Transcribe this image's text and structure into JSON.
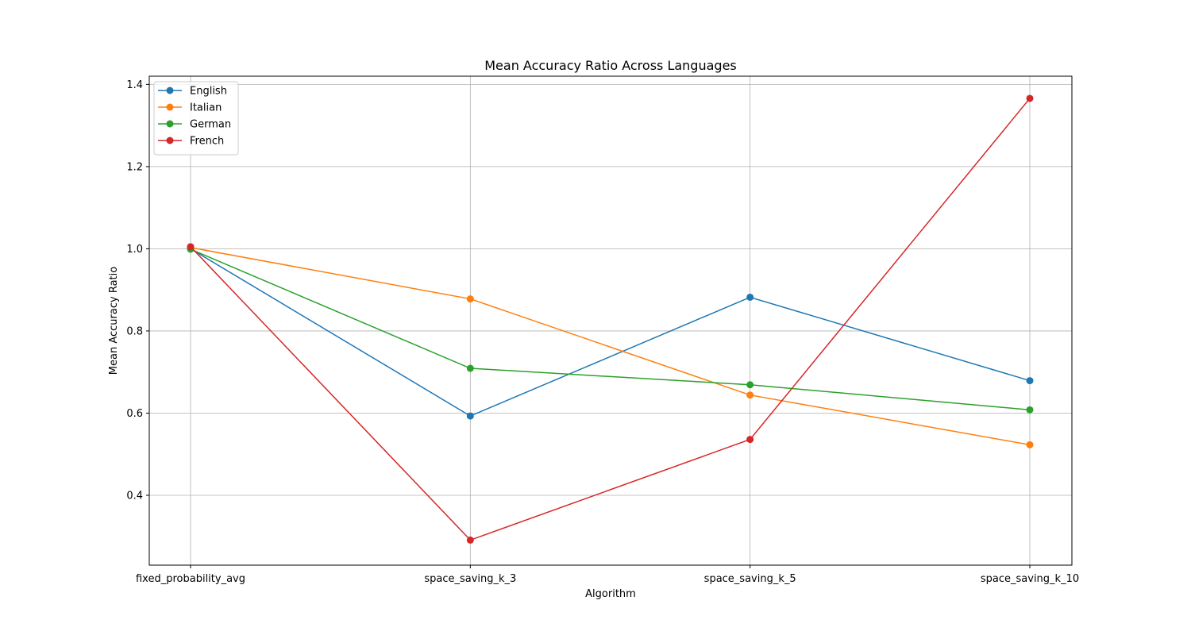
{
  "chart_data": {
    "type": "line",
    "title": "Mean Accuracy Ratio Across Languages",
    "xlabel": "Algorithm",
    "ylabel": "Mean Accuracy Ratio",
    "categories": [
      "fixed_probability_avg",
      "space_saving_k_3",
      "space_saving_k_5",
      "space_saving_k_10"
    ],
    "ylim": [
      0.23,
      1.42
    ],
    "yticks": [
      0.4,
      0.6,
      0.8,
      1.0,
      1.2,
      1.4
    ],
    "ytick_labels": [
      "0.4",
      "0.6",
      "0.8",
      "1.0",
      "1.2",
      "1.4"
    ],
    "grid": true,
    "legend_position": "top-left",
    "series": [
      {
        "name": "English",
        "color": "#1f77b4",
        "values": [
          1.0,
          0.593,
          0.882,
          0.679
        ]
      },
      {
        "name": "Italian",
        "color": "#ff7f0e",
        "values": [
          1.003,
          0.878,
          0.644,
          0.523
        ]
      },
      {
        "name": "German",
        "color": "#2ca02c",
        "values": [
          0.999,
          0.709,
          0.669,
          0.608
        ]
      },
      {
        "name": "French",
        "color": "#d62728",
        "values": [
          1.005,
          0.291,
          0.536,
          1.366
        ]
      }
    ]
  }
}
